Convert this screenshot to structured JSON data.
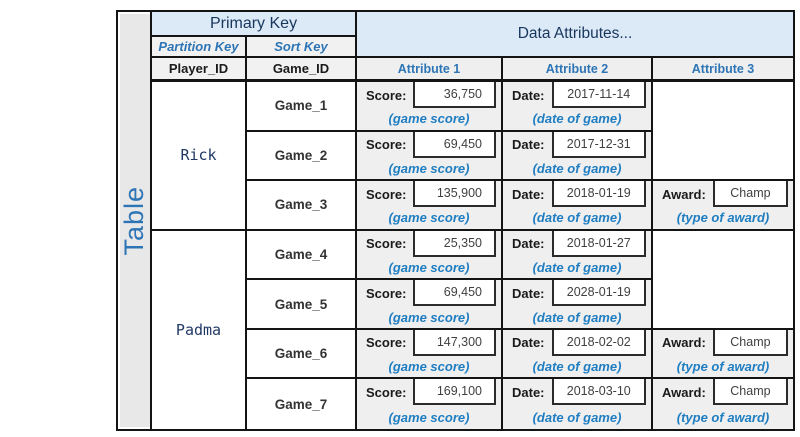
{
  "table_label": "Table",
  "header": {
    "primary_key": "Primary Key",
    "data_attributes": "Data Attributes...",
    "partition_key": "Partition Key",
    "sort_key": "Sort Key",
    "player_id": "Player_ID",
    "game_id": "Game_ID",
    "attribute_columns": [
      "Attribute 1",
      "Attribute 2",
      "Attribute 3"
    ]
  },
  "labels": {
    "score": "Score:",
    "date": "Date:",
    "award": "Award:",
    "score_caption": "(game score)",
    "date_caption": "(date of game)",
    "award_caption": "(type of award)"
  },
  "players": [
    {
      "name": "Rick"
    },
    {
      "name": "Padma"
    }
  ],
  "rows": [
    {
      "game": "Game_1",
      "score": "36,750",
      "date": "2017-11-14",
      "award": ""
    },
    {
      "game": "Game_2",
      "score": "69,450",
      "date": "2017-12-31",
      "award": ""
    },
    {
      "game": "Game_3",
      "score": "135,900",
      "date": "2018-01-19",
      "award": "Champ"
    },
    {
      "game": "Game_4",
      "score": "25,350",
      "date": "2018-01-27",
      "award": ""
    },
    {
      "game": "Game_5",
      "score": "69,450",
      "date": "2028-01-19",
      "award": ""
    },
    {
      "game": "Game_6",
      "score": "147,300",
      "date": "2018-02-02",
      "award": "Champ"
    },
    {
      "game": "Game_7",
      "score": "169,100",
      "date": "2018-03-10",
      "award": "Champ"
    }
  ],
  "colors": {
    "header_blue_bg": "#DCE9F7",
    "header_navy_text": "#17375D",
    "key_blue_text": "#2E75B6",
    "caption_blue_text": "#1F7EC2",
    "cell_gray_bg": "#EFEFEF",
    "strip_gray_bg": "#E8E8E8",
    "border_black": "#141414",
    "player_navy_text": "#203864"
  }
}
